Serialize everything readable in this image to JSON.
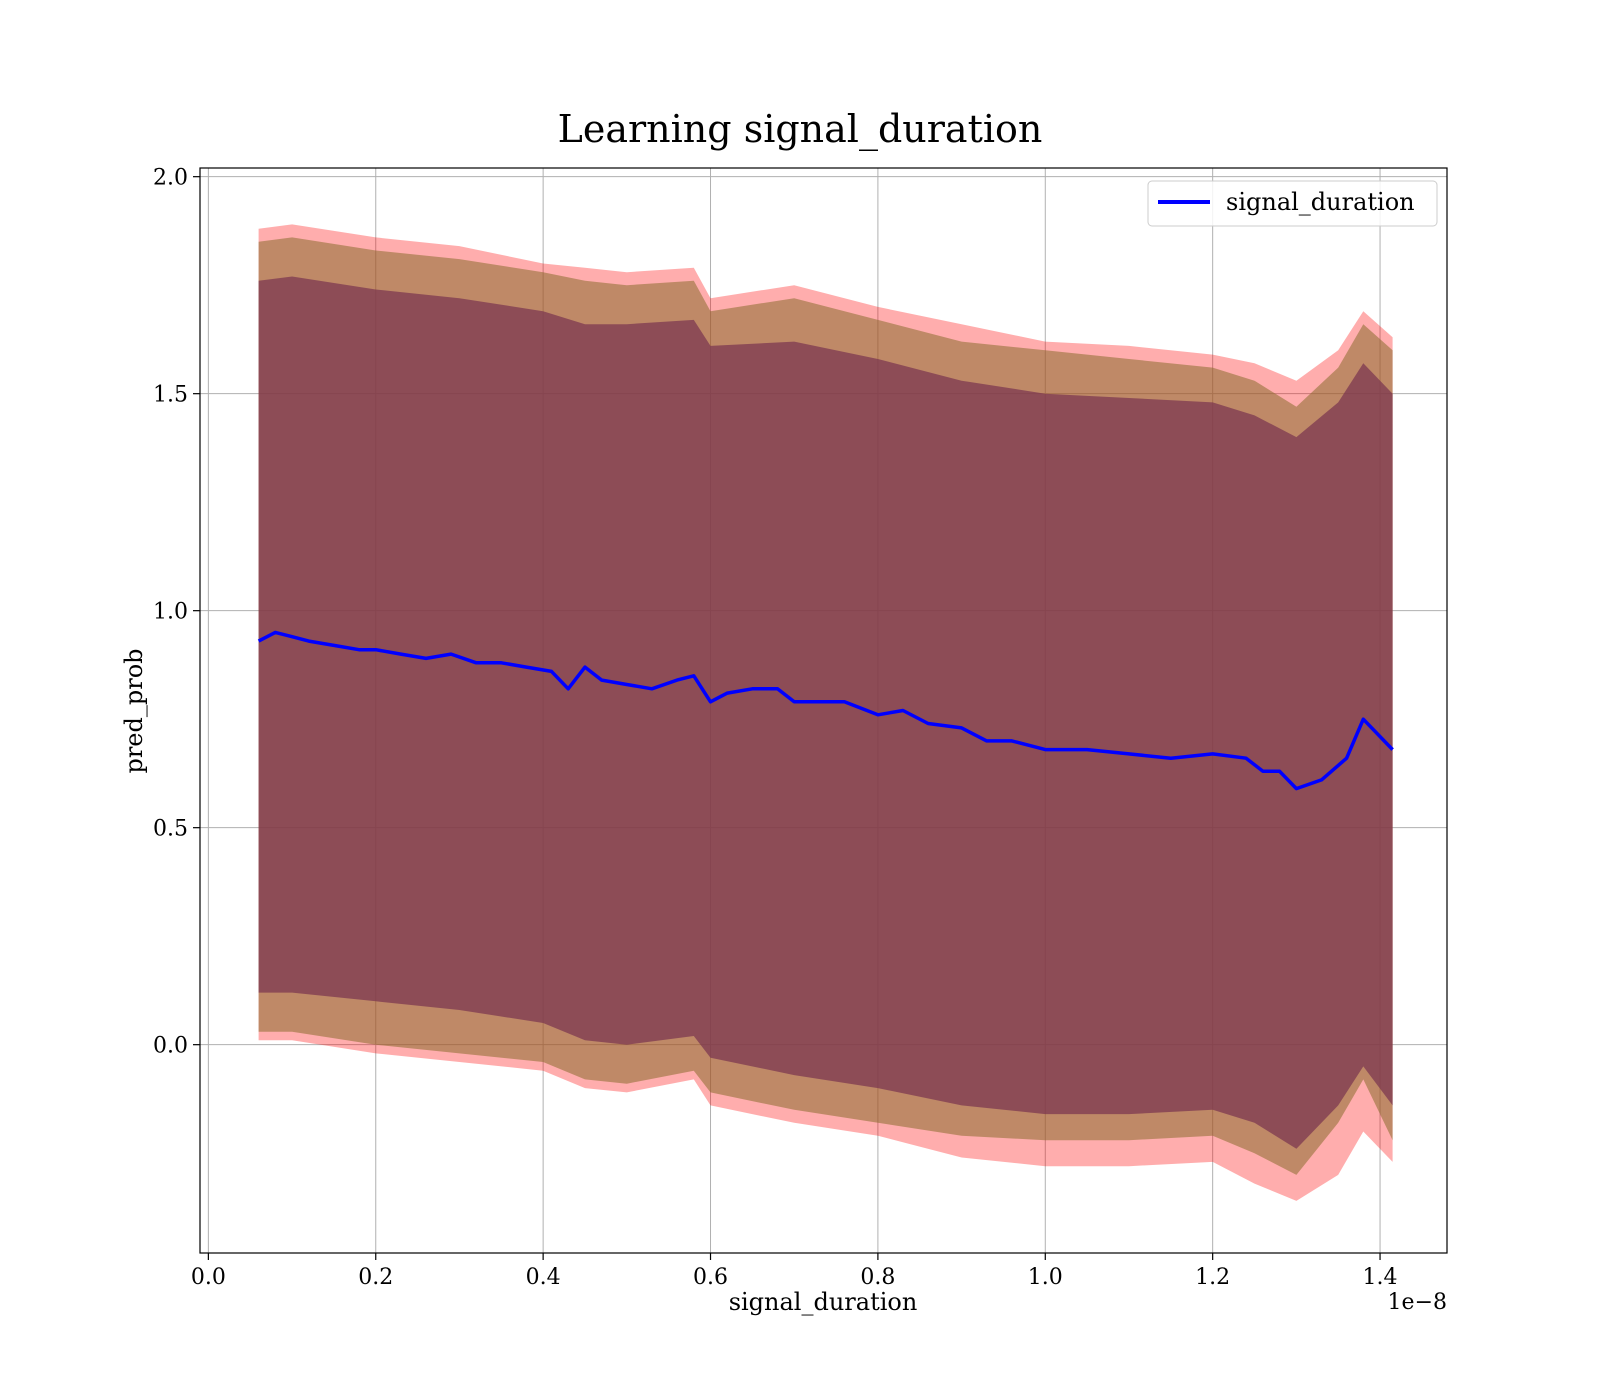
{
  "chart_data": {
    "type": "line",
    "title": "Learning signal_duration",
    "xlabel": "signal_duration",
    "ylabel": "pred_prob",
    "x_offset_text": "1e−8",
    "xlim": [
      -0.01,
      1.48
    ],
    "ylim": [
      -0.48,
      2.02
    ],
    "x_ticks": [
      0.0,
      0.2,
      0.4,
      0.6,
      0.8,
      1.0,
      1.2,
      1.4
    ],
    "x_tick_labels": [
      "0.0",
      "0.2",
      "0.4",
      "0.6",
      "0.8",
      "1.0",
      "1.2",
      "1.4"
    ],
    "y_ticks": [
      0.0,
      0.5,
      1.0,
      1.5,
      2.0
    ],
    "y_tick_labels": [
      "0.0",
      "0.5",
      "1.0",
      "1.5",
      "2.0"
    ],
    "grid": true,
    "legend_position": "top-right",
    "colors": {
      "line": "#0000ff",
      "band_outer": "#ff0000",
      "band_middle": "#8b6b2e",
      "band_inner": "#7a3550"
    },
    "series": [
      {
        "name": "signal_duration",
        "x": [
          0.06,
          0.08,
          0.1,
          0.12,
          0.15,
          0.18,
          0.2,
          0.23,
          0.26,
          0.29,
          0.32,
          0.35,
          0.38,
          0.41,
          0.43,
          0.45,
          0.47,
          0.5,
          0.53,
          0.56,
          0.58,
          0.6,
          0.62,
          0.65,
          0.68,
          0.7,
          0.73,
          0.76,
          0.8,
          0.83,
          0.86,
          0.9,
          0.93,
          0.96,
          1.0,
          1.05,
          1.1,
          1.15,
          1.2,
          1.24,
          1.26,
          1.28,
          1.3,
          1.33,
          1.36,
          1.38,
          1.415
        ],
        "y": [
          0.93,
          0.95,
          0.94,
          0.93,
          0.92,
          0.91,
          0.91,
          0.9,
          0.89,
          0.9,
          0.88,
          0.88,
          0.87,
          0.86,
          0.82,
          0.87,
          0.84,
          0.83,
          0.82,
          0.84,
          0.85,
          0.79,
          0.81,
          0.82,
          0.82,
          0.79,
          0.79,
          0.79,
          0.76,
          0.77,
          0.74,
          0.73,
          0.7,
          0.7,
          0.68,
          0.68,
          0.67,
          0.66,
          0.67,
          0.66,
          0.63,
          0.63,
          0.59,
          0.61,
          0.66,
          0.75,
          0.68
        ]
      }
    ],
    "bands": [
      {
        "x": [
          0.06,
          0.1,
          0.2,
          0.3,
          0.4,
          0.45,
          0.5,
          0.58,
          0.6,
          0.7,
          0.8,
          0.9,
          1.0,
          1.1,
          1.2,
          1.25,
          1.3,
          1.35,
          1.38,
          1.415
        ],
        "lower": [
          0.01,
          0.01,
          -0.02,
          -0.04,
          -0.06,
          -0.1,
          -0.11,
          -0.08,
          -0.14,
          -0.18,
          -0.21,
          -0.26,
          -0.28,
          -0.28,
          -0.27,
          -0.32,
          -0.36,
          -0.3,
          -0.2,
          -0.27
        ],
        "upper": [
          1.88,
          1.89,
          1.86,
          1.84,
          1.8,
          1.79,
          1.78,
          1.79,
          1.72,
          1.75,
          1.7,
          1.66,
          1.62,
          1.61,
          1.59,
          1.57,
          1.53,
          1.6,
          1.69,
          1.63
        ]
      },
      {
        "x": [
          0.06,
          0.1,
          0.2,
          0.3,
          0.4,
          0.45,
          0.5,
          0.58,
          0.6,
          0.7,
          0.8,
          0.9,
          1.0,
          1.1,
          1.2,
          1.25,
          1.3,
          1.35,
          1.38,
          1.415
        ],
        "lower": [
          0.03,
          0.03,
          0.0,
          -0.02,
          -0.04,
          -0.08,
          -0.09,
          -0.06,
          -0.11,
          -0.15,
          -0.18,
          -0.21,
          -0.22,
          -0.22,
          -0.21,
          -0.25,
          -0.3,
          -0.18,
          -0.08,
          -0.22
        ],
        "upper": [
          1.85,
          1.86,
          1.83,
          1.81,
          1.78,
          1.76,
          1.75,
          1.76,
          1.69,
          1.72,
          1.67,
          1.62,
          1.6,
          1.58,
          1.56,
          1.53,
          1.47,
          1.56,
          1.66,
          1.6
        ]
      },
      {
        "x": [
          0.06,
          0.1,
          0.2,
          0.3,
          0.4,
          0.45,
          0.5,
          0.58,
          0.6,
          0.7,
          0.8,
          0.9,
          1.0,
          1.1,
          1.2,
          1.25,
          1.3,
          1.35,
          1.38,
          1.415
        ],
        "lower": [
          0.12,
          0.12,
          0.1,
          0.08,
          0.05,
          0.01,
          0.0,
          0.02,
          -0.03,
          -0.07,
          -0.1,
          -0.14,
          -0.16,
          -0.16,
          -0.15,
          -0.18,
          -0.24,
          -0.14,
          -0.05,
          -0.14
        ],
        "upper": [
          1.76,
          1.77,
          1.74,
          1.72,
          1.69,
          1.66,
          1.66,
          1.67,
          1.61,
          1.62,
          1.58,
          1.53,
          1.5,
          1.49,
          1.48,
          1.45,
          1.4,
          1.48,
          1.57,
          1.5
        ]
      }
    ]
  }
}
